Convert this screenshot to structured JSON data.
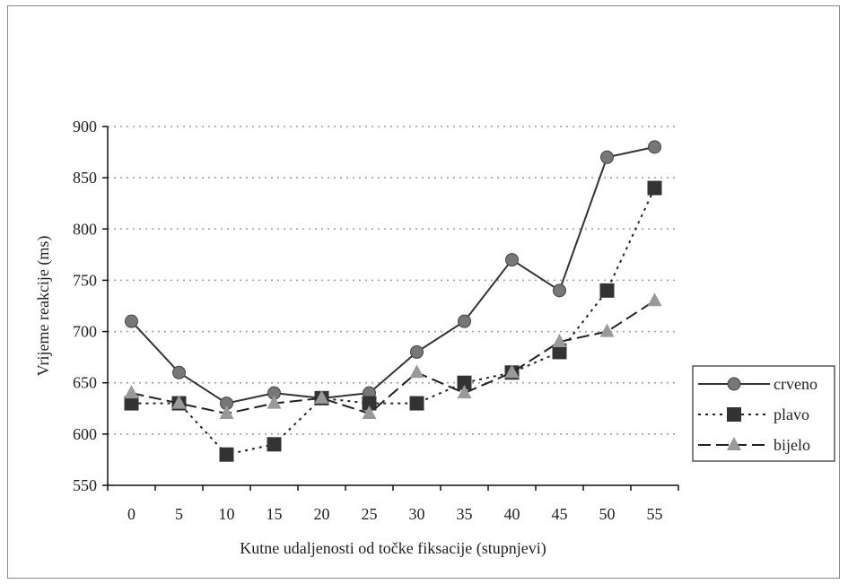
{
  "chart_data": {
    "type": "line",
    "title": "",
    "xlabel": "Kutne udaljenosti od točke fiksacije (stupnjevi)",
    "ylabel": "Vrijeme reakcije (ms)",
    "categories": [
      "0",
      "5",
      "10",
      "15",
      "20",
      "25",
      "30",
      "35",
      "40",
      "45",
      "50",
      "55"
    ],
    "ylim": [
      550,
      900
    ],
    "yticks": [
      550,
      600,
      650,
      700,
      750,
      800,
      850,
      900
    ],
    "grid": "horizontal dotted",
    "legend_position": "right",
    "series": [
      {
        "name": "crveno",
        "values": [
          710,
          660,
          630,
          640,
          635,
          640,
          680,
          710,
          770,
          740,
          870,
          880
        ],
        "marker": "circle",
        "line": "solid",
        "color": "#333333",
        "marker_color": "#777777"
      },
      {
        "name": "plavo",
        "values": [
          630,
          630,
          580,
          590,
          635,
          630,
          630,
          650,
          660,
          680,
          740,
          840
        ],
        "marker": "square",
        "line": "dotted",
        "color": "#222222",
        "marker_color": "#333333"
      },
      {
        "name": "bijelo",
        "values": [
          640,
          630,
          620,
          630,
          635,
          620,
          660,
          640,
          660,
          690,
          700,
          730
        ],
        "marker": "triangle",
        "line": "dashed",
        "color": "#222222",
        "marker_color": "#999999"
      }
    ]
  }
}
